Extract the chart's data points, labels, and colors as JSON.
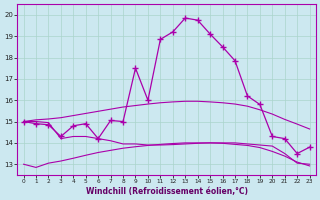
{
  "xlabel": "Windchill (Refroidissement éolien,°C)",
  "xlim": [
    -0.5,
    23.5
  ],
  "ylim": [
    12.5,
    20.5
  ],
  "xticks": [
    0,
    1,
    2,
    3,
    4,
    5,
    6,
    7,
    8,
    9,
    10,
    11,
    12,
    13,
    14,
    15,
    16,
    17,
    18,
    19,
    20,
    21,
    22,
    23
  ],
  "yticks": [
    13,
    14,
    15,
    16,
    17,
    18,
    19,
    20
  ],
  "bg_color": "#cce8f0",
  "line_color": "#aa00aa",
  "grid_color": "#aad4cc",
  "line1_x": [
    0,
    1,
    2,
    3,
    4,
    5,
    6,
    7,
    8,
    9,
    10,
    11,
    12,
    13,
    14,
    15,
    16,
    17,
    18,
    19,
    20,
    21,
    22,
    23
  ],
  "line1_y": [
    15.0,
    14.9,
    14.85,
    14.3,
    14.8,
    14.9,
    14.2,
    15.05,
    15.0,
    17.5,
    16.0,
    18.85,
    19.2,
    19.85,
    19.75,
    19.1,
    18.5,
    17.85,
    16.2,
    15.8,
    14.3,
    14.2,
    13.5,
    13.8
  ],
  "line2_x": [
    0,
    1,
    2,
    3,
    4,
    5,
    6,
    7,
    8,
    9,
    10,
    11,
    12,
    13,
    14,
    15,
    16,
    17,
    18,
    19,
    20,
    21,
    22,
    23
  ],
  "line2_y": [
    15.0,
    15.0,
    14.95,
    14.2,
    14.3,
    14.3,
    14.2,
    14.1,
    13.95,
    13.95,
    13.9,
    13.9,
    13.92,
    13.95,
    13.98,
    14.0,
    14.0,
    14.0,
    13.95,
    13.9,
    13.85,
    13.5,
    13.05,
    13.0
  ],
  "line3_x": [
    0,
    1,
    2,
    3,
    4,
    5,
    6,
    7,
    8,
    9,
    10,
    11,
    12,
    13,
    14,
    15,
    16,
    17,
    18,
    19,
    20,
    21,
    22,
    23
  ],
  "line3_y": [
    13.0,
    12.85,
    13.05,
    13.15,
    13.28,
    13.42,
    13.55,
    13.65,
    13.75,
    13.82,
    13.88,
    13.93,
    13.97,
    14.0,
    14.0,
    14.0,
    13.98,
    13.93,
    13.88,
    13.78,
    13.6,
    13.38,
    13.1,
    12.92
  ],
  "line4_x": [
    0,
    1,
    2,
    3,
    4,
    5,
    6,
    7,
    8,
    9,
    10,
    11,
    12,
    13,
    14,
    15,
    16,
    17,
    18,
    19,
    20,
    21,
    22,
    23
  ],
  "line4_y": [
    15.0,
    15.08,
    15.12,
    15.18,
    15.28,
    15.38,
    15.48,
    15.58,
    15.68,
    15.75,
    15.82,
    15.88,
    15.92,
    15.95,
    15.95,
    15.92,
    15.88,
    15.82,
    15.72,
    15.55,
    15.35,
    15.1,
    14.88,
    14.65
  ]
}
